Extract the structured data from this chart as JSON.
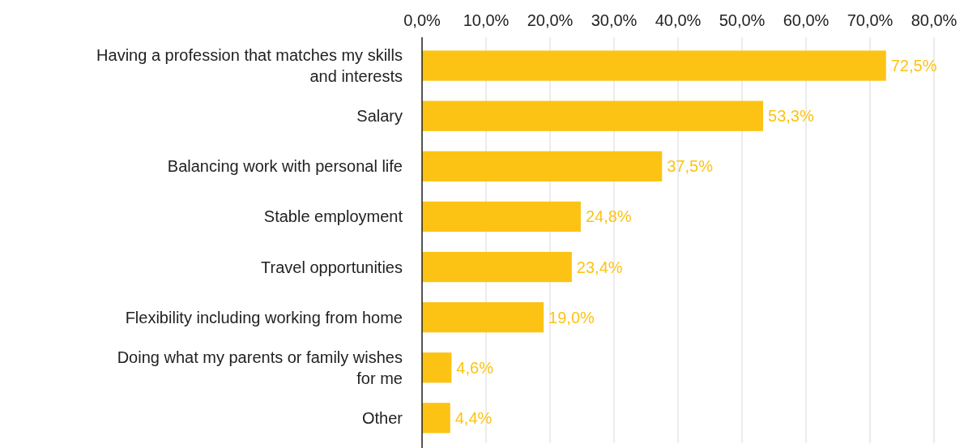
{
  "chart_data": {
    "type": "bar",
    "orientation": "horizontal",
    "categories": [
      "Having a profession that matches my skills and interests",
      "Salary",
      "Balancing work with personal life",
      "Stable employment",
      "Travel opportunities",
      "Flexibility including working from home",
      "Doing what my parents or family wishes for me",
      "Other"
    ],
    "values": [
      72.5,
      53.3,
      37.5,
      24.8,
      23.4,
      19.0,
      4.6,
      4.4
    ],
    "value_labels": [
      "72,5%",
      "53,3%",
      "37,5%",
      "24,8%",
      "23,4%",
      "19,0%",
      "4,6%",
      "4,4%"
    ],
    "color": "#fcc314",
    "xlim": [
      0,
      80
    ],
    "xticks": [
      {
        "value": 0,
        "label": "0,0%"
      },
      {
        "value": 10,
        "label": "10,0%"
      },
      {
        "value": 20,
        "label": "20,0%"
      },
      {
        "value": 30,
        "label": "30,0%"
      },
      {
        "value": 40,
        "label": "40,0%"
      },
      {
        "value": 50,
        "label": "50,0%"
      },
      {
        "value": 60,
        "label": "60,0%"
      },
      {
        "value": 70,
        "label": "70,0%"
      },
      {
        "value": 80,
        "label": "80,0%"
      }
    ],
    "grid": "x"
  }
}
